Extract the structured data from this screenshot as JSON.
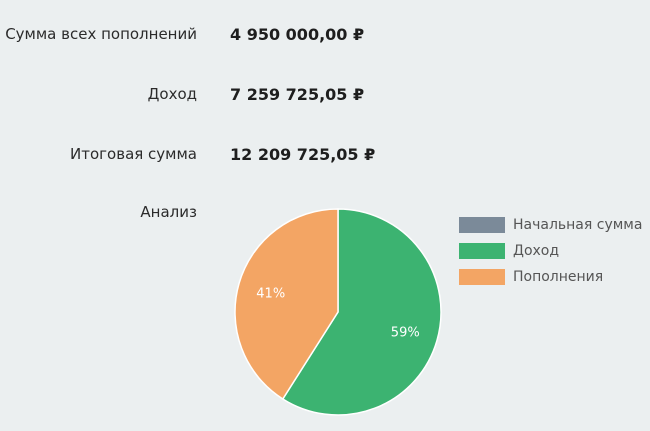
{
  "summary": {
    "rows": [
      {
        "label": "Сумма всех пополнений",
        "value": "4 950 000,00 ₽"
      },
      {
        "label": "Доход",
        "value": "7 259 725,05 ₽"
      },
      {
        "label": "Итоговая сумма",
        "value": "12 209 725,05 ₽"
      }
    ],
    "analysis_label": "Анализ"
  },
  "chart_data": {
    "type": "pie",
    "slices": [
      {
        "name": "Начальная сумма",
        "value": 0,
        "color": "#7b8a99"
      },
      {
        "name": "Доход",
        "value": 59,
        "color": "#3cb371",
        "label": "59%"
      },
      {
        "name": "Пополнения",
        "value": 41,
        "color": "#f3a564",
        "label": "41%"
      }
    ],
    "legend_position": "right",
    "legend": [
      {
        "name": "Начальная сумма",
        "color": "#7b8a99"
      },
      {
        "name": "Доход",
        "color": "#3cb371"
      },
      {
        "name": "Пополнения",
        "color": "#f3a564"
      }
    ]
  }
}
